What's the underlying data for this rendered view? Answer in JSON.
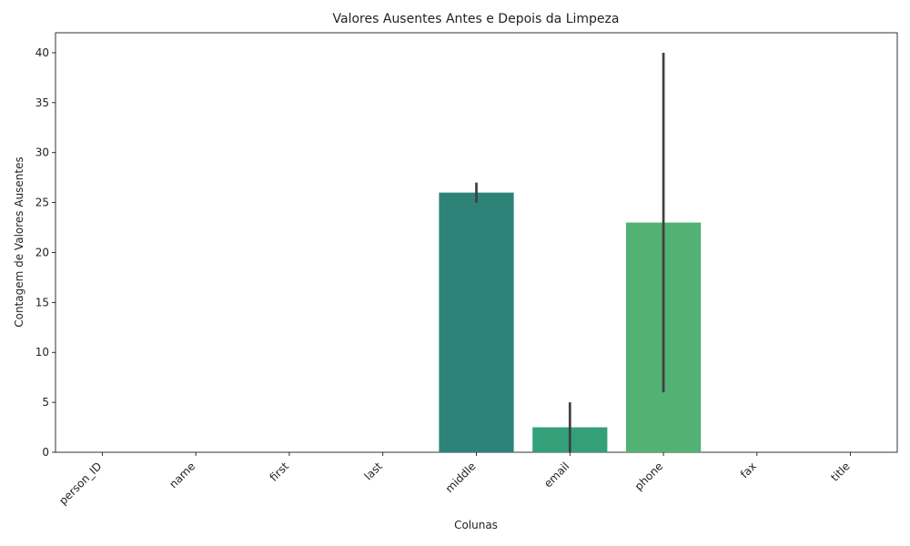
{
  "chart_data": {
    "type": "bar",
    "title": "Valores Ausentes Antes e Depois da Limpeza",
    "xlabel": "Colunas",
    "ylabel": "Contagem de Valores Ausentes",
    "categories": [
      "person_ID",
      "name",
      "first",
      "last",
      "middle",
      "email",
      "phone",
      "fax",
      "title"
    ],
    "values": [
      0,
      0,
      0,
      0,
      26,
      2.5,
      23,
      0,
      0
    ],
    "error_ranges": [
      [
        0,
        0
      ],
      [
        0,
        0
      ],
      [
        0,
        0
      ],
      [
        0,
        0
      ],
      [
        25,
        27
      ],
      [
        0,
        5
      ],
      [
        6,
        40
      ],
      [
        0,
        0
      ],
      [
        0,
        0
      ]
    ],
    "bar_colors": [
      "#440154",
      "#472c7a",
      "#3b518b",
      "#2c718e",
      "#2e8379",
      "#33a07a",
      "#52b173",
      "#8ed645",
      "#fde725"
    ],
    "ylim": [
      0,
      42
    ],
    "yticks": [
      0,
      5,
      10,
      15,
      20,
      25,
      30,
      35,
      40
    ],
    "grid": false,
    "legend": "none"
  }
}
